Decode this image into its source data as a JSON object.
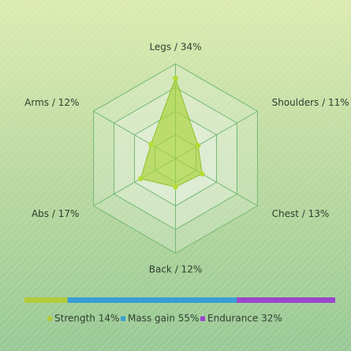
{
  "chart_data": {
    "type": "radar",
    "axes": [
      "Legs",
      "Shoulders",
      "Chest",
      "Back",
      "Abs",
      "Arms"
    ],
    "axis_labels": [
      "Legs / 34%",
      "Shoulders / 11%",
      "Chest / 13%",
      "Back / 12%",
      "Abs / 17%",
      "Arms / 12%"
    ],
    "values": [
      34,
      11,
      13,
      12,
      17,
      12
    ],
    "rmax": 40,
    "rings": 4,
    "grid": true,
    "colors": {
      "fill": "#a8d236",
      "stroke": "#8cbf2a",
      "point": "#b5dc34",
      "grid": "#74b874",
      "grid_fill": "#e6f1de"
    },
    "split_bar": [
      {
        "name": "Strength",
        "value": 14,
        "color": "#b2cc3a"
      },
      {
        "name": "Mass gain",
        "value": 55,
        "color": "#3a9ed4"
      },
      {
        "name": "Endurance",
        "value": 32,
        "color": "#9a46cc"
      }
    ],
    "legend_labels": [
      "Strength 14%",
      "Mass gain 55%",
      "Endurance 32%"
    ],
    "legend_placement": "bottom"
  }
}
